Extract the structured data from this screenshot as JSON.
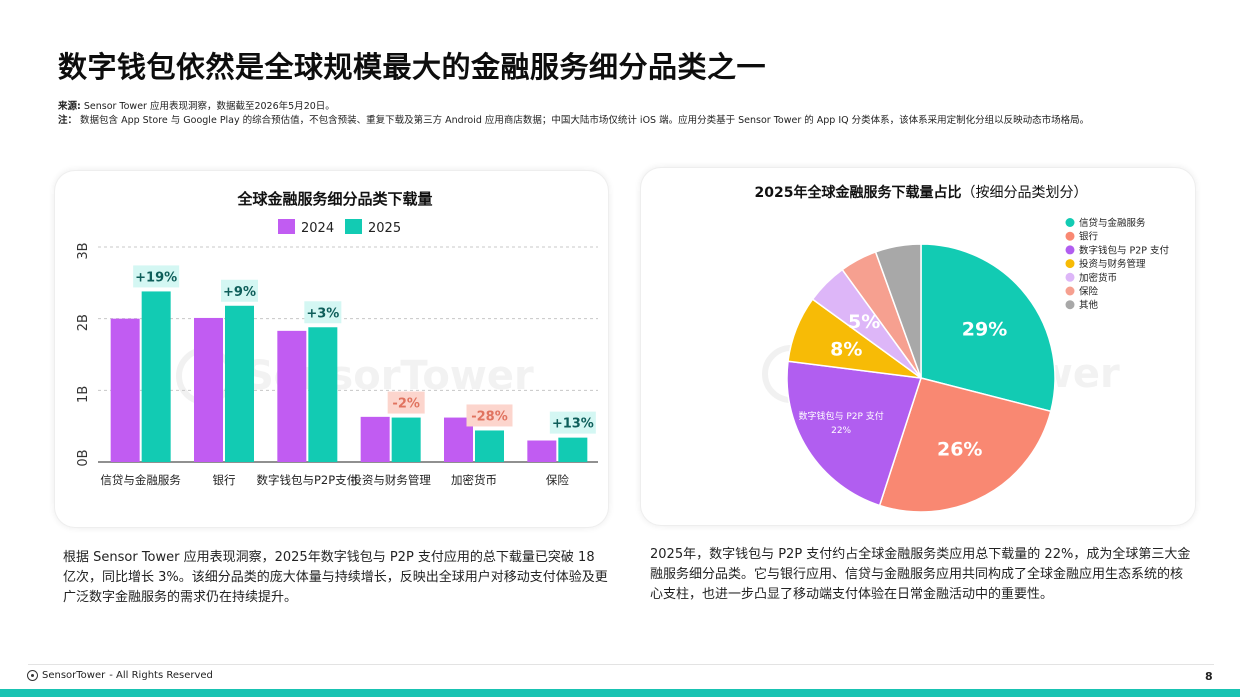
{
  "page": {
    "title": "数字钱包依然是全球规模最大的金融服务细分品类之一",
    "source_label": "来源:",
    "source_text": "Sensor Tower 应用表现洞察，数据截至2026年5月20日。",
    "note_label": "注：",
    "note_text": "数据包含 App Store 与 Google Play 的综合预估值，不包含预装、重复下载及第三方 Android 应用商店数据；中国大陆市场仅统计 iOS 端。应用分类基于 Sensor Tower 的 App IQ 分类体系，该体系采用定制化分组以反映动态市场格局。",
    "left_paragraph": "根据 Sensor Tower 应用表现洞察，2025年数字钱包与 P2P 支付应用的总下载量已突破 18 亿次，同比增长 3%。该细分品类的庞大体量与持续增长，反映出全球用户对移动支付体验及更广泛数字金融服务的需求仍在持续提升。",
    "right_paragraph": "2025年，数字钱包与 P2P 支付约占全球金融服务类应用总下载量的 22%，成为全球第三大金融服务细分品类。它与银行应用、信贷与金融服务应用共同构成了全球金融应用生态系统的核心支柱，也进一步凸显了移动端支付体验在日常金融活动中的重要性。",
    "watermark": "SensorTower",
    "footer_brand": "SensorTower",
    "footer_rights": "- All Rights Reserved",
    "page_number": "8"
  },
  "chart_data": [
    {
      "type": "bar",
      "title": "全球金融服务细分品类下载量",
      "categories": [
        "信贷与金融服务",
        "银行",
        "数字钱包与P2P支付",
        "投资与财务管理",
        "加密货币",
        "保险"
      ],
      "series": [
        {
          "name": "2024",
          "color": "#c15cf2",
          "values": [
            2.0,
            2.01,
            1.83,
            0.63,
            0.62,
            0.3
          ]
        },
        {
          "name": "2025",
          "color": "#12cbb3",
          "values": [
            2.38,
            2.18,
            1.88,
            0.62,
            0.44,
            0.34
          ]
        }
      ],
      "growth_labels": [
        "+19%",
        "+9%",
        "+3%",
        "-2%",
        "-28%",
        "+13%"
      ],
      "growth_positive": [
        true,
        true,
        true,
        false,
        false,
        true
      ],
      "ytick_labels": [
        "0B",
        "1B",
        "2B",
        "3B"
      ],
      "ytick_values": [
        0,
        1,
        2,
        3
      ],
      "ylim": [
        0,
        3
      ],
      "grid": true,
      "legend_position": "top"
    },
    {
      "type": "pie",
      "title": "2025年全球金融服务下载量占比",
      "subtitle": "（按细分品类划分）",
      "slices": [
        {
          "label": "信贷与金融服务",
          "value": 29,
          "color": "#12cbb3",
          "text": "29%"
        },
        {
          "label": "银行",
          "value": 26,
          "color": "#f98872",
          "text": "26%"
        },
        {
          "label": "数字钱包与 P2P 支付",
          "value": 22,
          "color": "#b15ef0",
          "text": "22%",
          "inner_label": "数字钱包与 P2P 支付"
        },
        {
          "label": "投资与财务管理",
          "value": 8,
          "color": "#f7bb06",
          "text": "8%"
        },
        {
          "label": "加密货币",
          "value": 5,
          "color": "#ddb6f8",
          "text": "5%"
        },
        {
          "label": "保险",
          "value": 4.5,
          "color": "#f6a090",
          "text": ""
        },
        {
          "label": "其他",
          "value": 5.5,
          "color": "#a8a8a8",
          "text": ""
        }
      ],
      "legend_position": "right"
    }
  ]
}
